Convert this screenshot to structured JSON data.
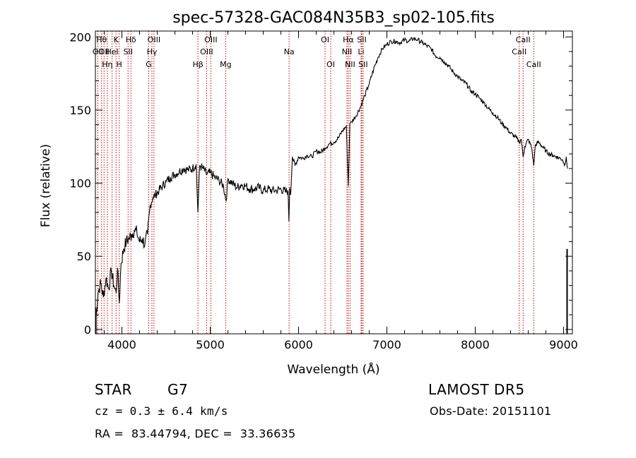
{
  "chart_data": {
    "type": "line",
    "title": "spec-57328-GAC084N35B3_sp02-105.fits",
    "xlabel": "Wavelength (Å)",
    "ylabel": "Flux (relative)",
    "xlim": [
      3700,
      9100
    ],
    "ylim": [
      -3,
      204
    ],
    "xticks": [
      4000,
      5000,
      6000,
      7000,
      8000,
      9000
    ],
    "yticks": [
      0,
      50,
      100,
      150,
      200
    ],
    "grid": false,
    "series": [
      {
        "x": [
          3700,
          3730,
          3760,
          3790,
          3820,
          3850,
          3880,
          3910,
          3935,
          3950,
          3970,
          3990,
          4020,
          4050,
          4080,
          4110,
          4140,
          4170,
          4200,
          4230,
          4260,
          4290,
          4320,
          4350,
          4380,
          4420,
          4460,
          4500,
          4550,
          4600,
          4650,
          4700,
          4750,
          4800,
          4840,
          4861,
          4880,
          4920,
          4960,
          5000,
          5050,
          5100,
          5150,
          5180,
          5200,
          5250,
          5300,
          5350,
          5400,
          5450,
          5500,
          5550,
          5600,
          5650,
          5700,
          5750,
          5800,
          5850,
          5880,
          5890,
          5900,
          5910,
          5930,
          5960,
          6000,
          6050,
          6100,
          6150,
          6200,
          6250,
          6300,
          6350,
          6400,
          6450,
          6500,
          6540,
          6563,
          6580,
          6600,
          6650,
          6700,
          6750,
          6800,
          6850,
          6900,
          6950,
          7000,
          7050,
          7100,
          7150,
          7200,
          7250,
          7300,
          7350,
          7400,
          7450,
          7500,
          7550,
          7600,
          7650,
          7700,
          7750,
          7800,
          7850,
          7900,
          7950,
          8000,
          8050,
          8100,
          8150,
          8200,
          8250,
          8300,
          8350,
          8400,
          8450,
          8498,
          8520,
          8542,
          8560,
          8600,
          8640,
          8662,
          8680,
          8720,
          8760,
          8800,
          8840,
          8880,
          8920,
          8960,
          8990,
          9010,
          9030,
          9045
        ],
        "values": [
          3,
          25,
          32,
          22,
          35,
          28,
          40,
          30,
          25,
          42,
          18,
          45,
          55,
          60,
          62,
          65,
          68,
          66,
          60,
          62,
          58,
          65,
          85,
          90,
          92,
          95,
          98,
          101,
          104,
          106,
          108,
          110,
          109,
          110,
          113,
          80,
          112,
          110,
          106,
          107,
          104,
          102,
          98,
          88,
          103,
          100,
          97,
          99,
          98,
          96,
          96,
          97,
          95,
          96,
          95,
          95,
          96,
          94,
          95,
          74,
          97,
          92,
          118,
          112,
          118,
          117,
          119,
          118,
          122,
          121,
          124,
          127,
          128,
          131,
          136,
          139,
          98,
          140,
          142,
          146,
          152,
          160,
          168,
          178,
          186,
          192,
          195,
          197,
          197,
          196,
          198,
          197,
          199,
          198,
          196,
          194,
          192,
          187,
          186,
          183,
          180,
          176,
          173,
          170,
          168,
          163,
          161,
          158,
          155,
          151,
          148,
          145,
          141,
          138,
          134,
          132,
          128,
          130,
          118,
          125,
          130,
          124,
          112,
          126,
          128,
          125,
          122,
          120,
          119,
          118,
          117,
          116,
          112,
          118,
          110
        ]
      }
    ],
    "annotations": [
      {
        "x": 3727,
        "label": "OII",
        "row": 2
      },
      {
        "x": 3770,
        "label": "Hθ",
        "row": 1
      },
      {
        "x": 3798,
        "label": "OII",
        "row": 2
      },
      {
        "x": 3835,
        "label": "Hη",
        "row": 3
      },
      {
        "x": 3889,
        "label": "HeI",
        "row": 2
      },
      {
        "x": 3934,
        "label": "K",
        "row": 1
      },
      {
        "x": 3969,
        "label": "H",
        "row": 3
      },
      {
        "x": 4070,
        "label": "SII",
        "row": 2
      },
      {
        "x": 4102,
        "label": "Hδ",
        "row": 1
      },
      {
        "x": 4304,
        "label": "G",
        "row": 3
      },
      {
        "x": 4340,
        "label": "Hγ",
        "row": 2
      },
      {
        "x": 4363,
        "label": "OIII",
        "row": 1
      },
      {
        "x": 4861,
        "label": "Hβ",
        "row": 3
      },
      {
        "x": 4959,
        "label": "OIII",
        "row": 2
      },
      {
        "x": 5007,
        "label": "OIII",
        "row": 1
      },
      {
        "x": 5175,
        "label": "Mg",
        "row": 3
      },
      {
        "x": 5893,
        "label": "Na",
        "row": 2
      },
      {
        "x": 6300,
        "label": "OI",
        "row": 1
      },
      {
        "x": 6364,
        "label": "OI",
        "row": 3
      },
      {
        "x": 6548,
        "label": "NII",
        "row": 2
      },
      {
        "x": 6563,
        "label": "Hα",
        "row": 1
      },
      {
        "x": 6583,
        "label": "NII",
        "row": 3
      },
      {
        "x": 6708,
        "label": "Li",
        "row": 2
      },
      {
        "x": 6716,
        "label": "SII",
        "row": 1
      },
      {
        "x": 6731,
        "label": "SII",
        "row": 3
      },
      {
        "x": 8498,
        "label": "CaII",
        "row": 2
      },
      {
        "x": 8542,
        "label": "CaII",
        "row": 1
      },
      {
        "x": 8662,
        "label": "CaII",
        "row": 3
      }
    ],
    "colors": {
      "spectrum": "#000000",
      "lines": "#cc0000",
      "axes": "#000000"
    }
  },
  "info": {
    "object_class": "STAR",
    "subclass": "G7",
    "redshift": "cz = 0.3 ± 6.4 km/s",
    "coords": "RA =  83.44794, DEC =  33.36635",
    "survey": "LAMOST DR5",
    "obs_date": "Obs-Date: 20151101"
  }
}
